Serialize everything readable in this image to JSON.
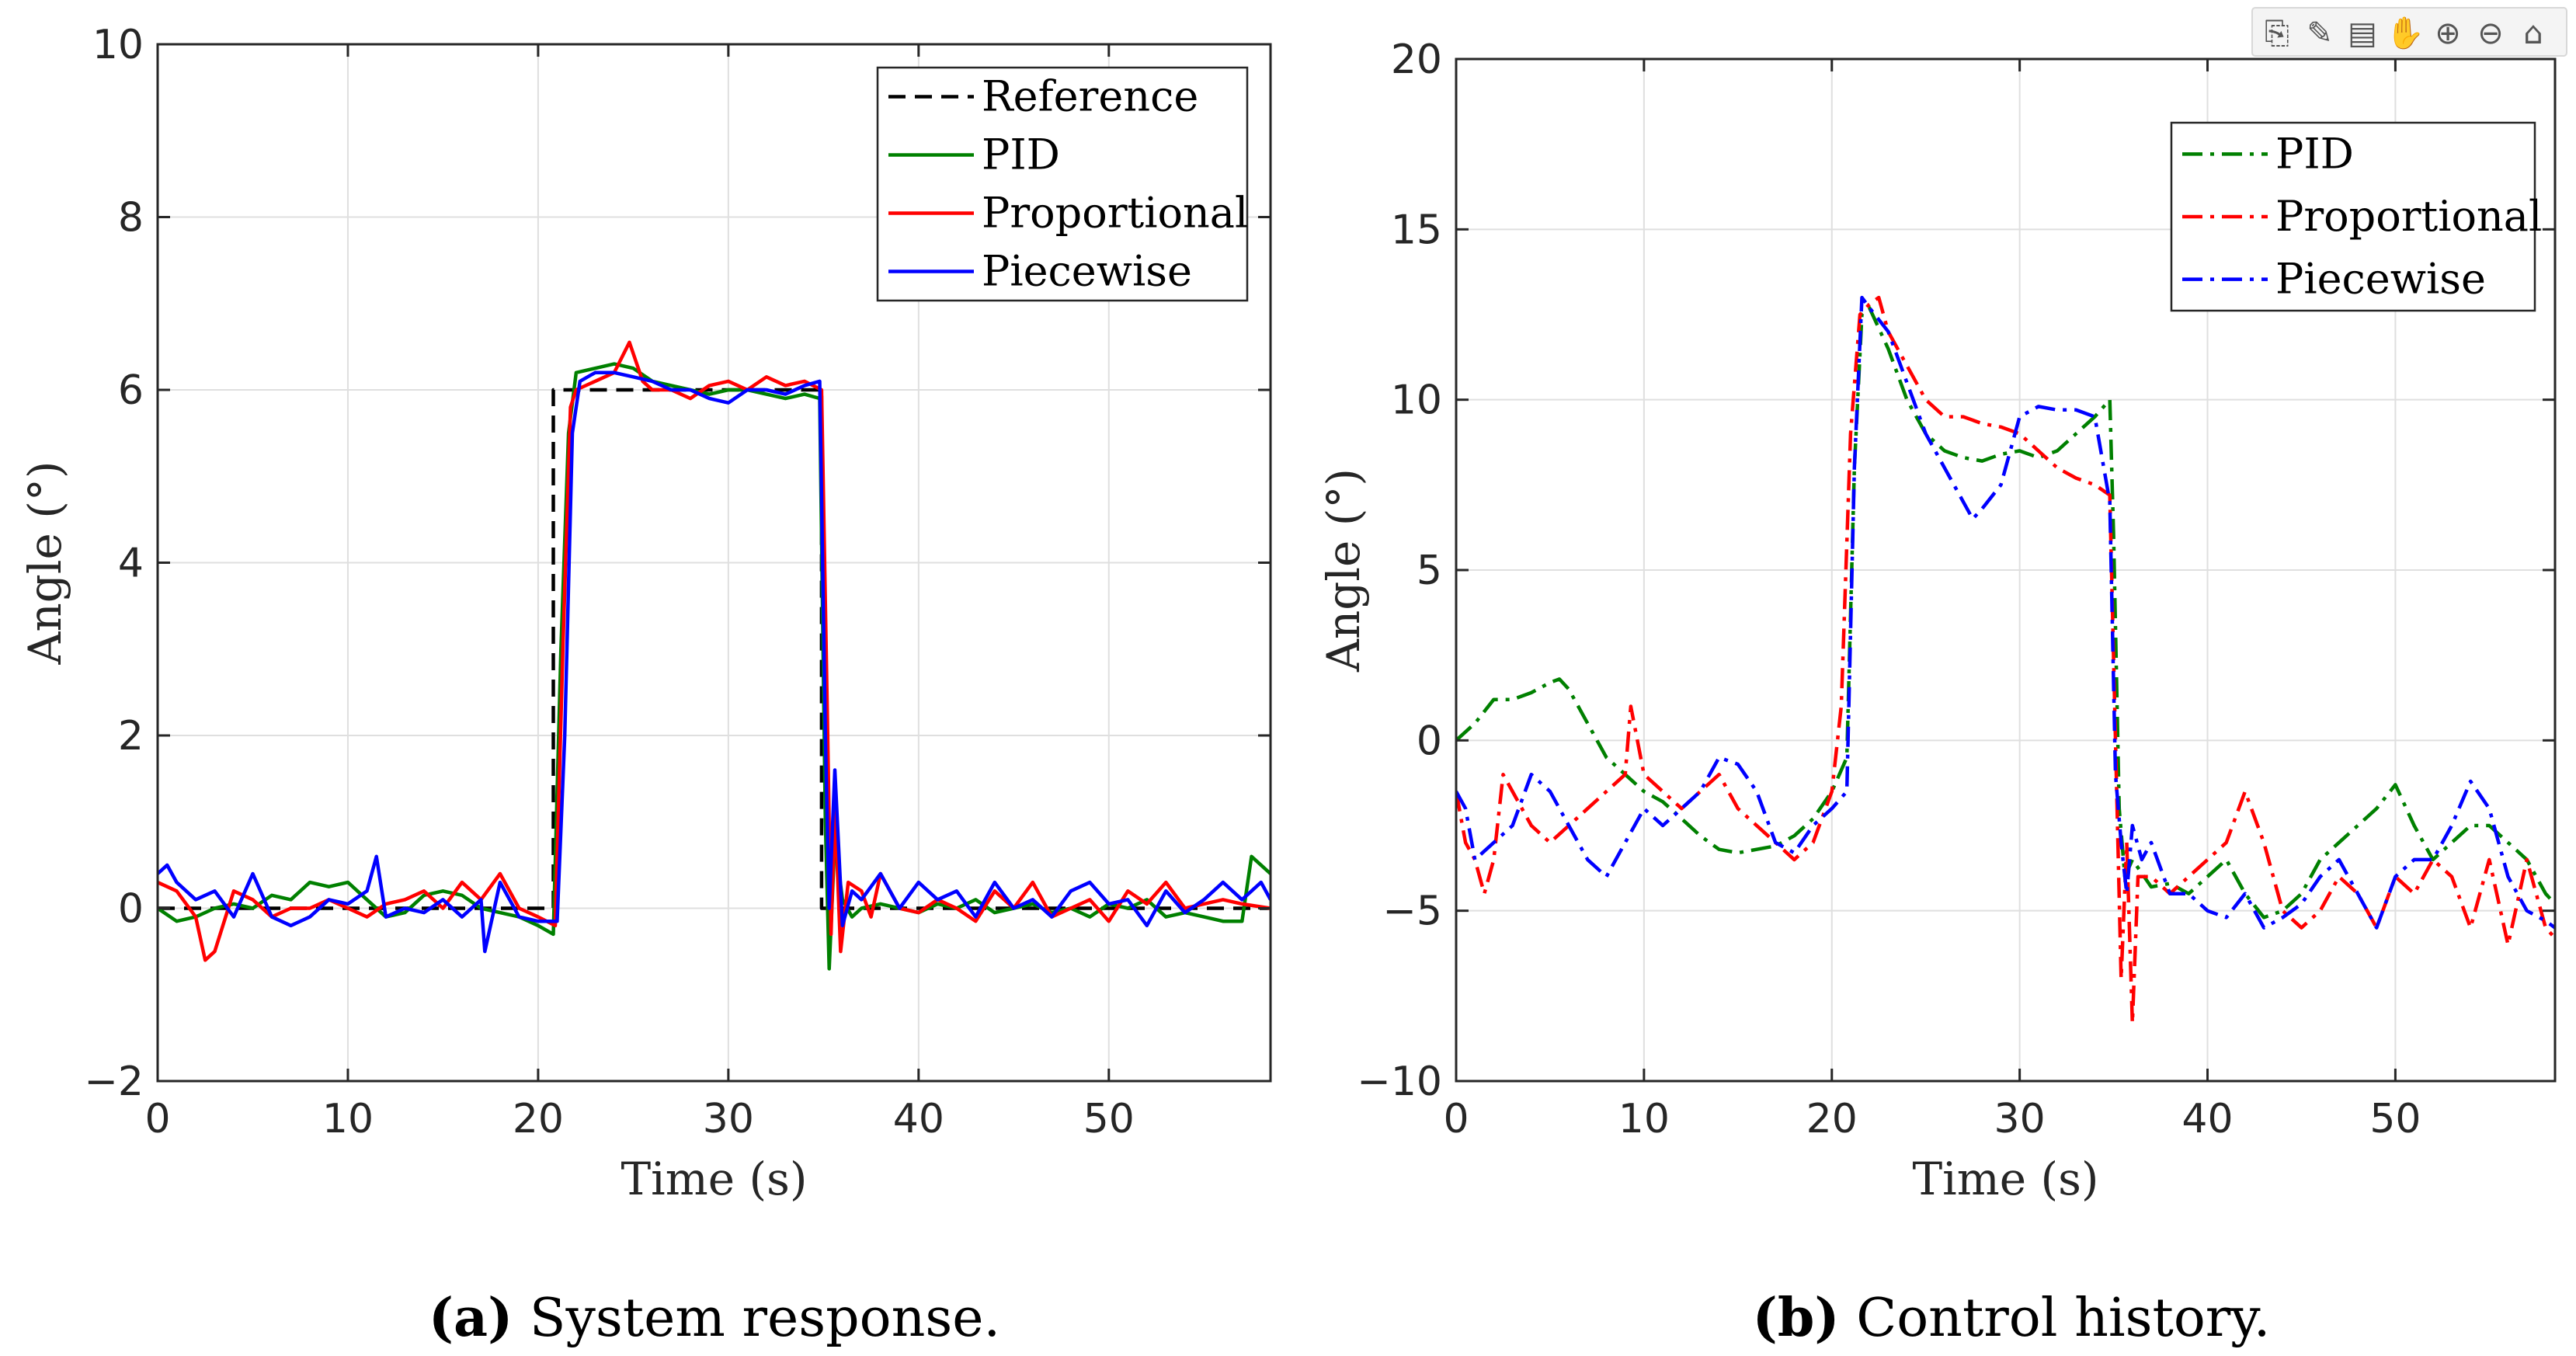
{
  "toolbar": {
    "icons": [
      "export-icon",
      "brush-icon",
      "datatip-icon",
      "pan-icon",
      "zoom-in-icon",
      "zoom-out-icon",
      "home-icon"
    ]
  },
  "chart_data": [
    {
      "type": "line",
      "caption_label": "(a)",
      "caption_text": " System response.",
      "xlabel": "Time (s)",
      "ylabel": "Angle (°)",
      "xlim": [
        0,
        58.5
      ],
      "ylim": [
        -2,
        10
      ],
      "xticks": [
        0,
        10,
        20,
        30,
        40,
        50
      ],
      "yticks": [
        -2,
        0,
        2,
        4,
        6,
        8,
        10
      ],
      "xtick_labels": [
        "0",
        "10",
        "20",
        "30",
        "40",
        "50"
      ],
      "ytick_labels": [
        "−2",
        "0",
        "2",
        "4",
        "6",
        "8",
        "10"
      ],
      "grid": true,
      "legend_position": "top-right",
      "series": [
        {
          "name": "Reference",
          "color": "#000000",
          "style": "dashed",
          "x": [
            0,
            20.8,
            20.8,
            34.9,
            34.9,
            58.5
          ],
          "y": [
            0,
            0,
            6,
            6,
            0,
            0
          ]
        },
        {
          "name": "PID",
          "color": "#008000",
          "style": "solid",
          "x": [
            0,
            1,
            2,
            3,
            4,
            5,
            6,
            7,
            8,
            9,
            10,
            11,
            12,
            13,
            14,
            15,
            16,
            17,
            18,
            19,
            20,
            20.8,
            21.2,
            21.6,
            22,
            23,
            24,
            25,
            26,
            27,
            28,
            29,
            30,
            31,
            32,
            33,
            34,
            34.8,
            35.1,
            35.3,
            35.6,
            36,
            36.5,
            37,
            38,
            39,
            40,
            41,
            42,
            43,
            44,
            45,
            46,
            47,
            48,
            49,
            50,
            51,
            52,
            53,
            54,
            55,
            56,
            57,
            57.5,
            58,
            58.5
          ],
          "y": [
            0,
            -0.15,
            -0.1,
            0,
            0.05,
            0,
            0.15,
            0.1,
            0.3,
            0.25,
            0.3,
            0.1,
            -0.1,
            -0.05,
            0.15,
            0.2,
            0.15,
            0,
            -0.05,
            -0.1,
            -0.2,
            -0.3,
            3,
            5.5,
            6.2,
            6.25,
            6.3,
            6.25,
            6.1,
            6.05,
            6,
            5.95,
            6,
            6,
            5.95,
            5.9,
            5.95,
            5.9,
            1,
            -0.7,
            0.8,
            0.1,
            -0.1,
            0,
            0.05,
            0,
            -0.05,
            0.05,
            0,
            0.1,
            -0.05,
            0,
            0.05,
            -0.05,
            0,
            -0.1,
            0.05,
            0,
            0.1,
            -0.1,
            -0.05,
            -0.1,
            -0.15,
            -0.15,
            0.6,
            0.5,
            0.4
          ]
        },
        {
          "name": "Proportional",
          "color": "#ff0000",
          "style": "solid",
          "x": [
            0,
            1,
            2,
            2.5,
            3,
            4,
            5,
            6,
            7,
            8,
            9,
            10,
            11,
            12,
            13,
            14,
            15,
            16,
            17,
            18,
            19,
            20,
            20.9,
            21.3,
            21.7,
            22,
            23,
            24,
            24.8,
            25.5,
            26,
            27,
            28,
            29,
            30,
            31,
            32,
            33,
            34,
            34.9,
            35.2,
            35.4,
            35.6,
            35.9,
            36.3,
            37,
            37.5,
            38,
            39,
            40,
            41,
            42,
            43,
            44,
            45,
            46,
            47,
            48,
            49,
            50,
            51,
            52,
            53,
            54,
            55,
            56,
            57,
            58.5
          ],
          "y": [
            0.3,
            0.2,
            -0.1,
            -0.6,
            -0.5,
            0.2,
            0.1,
            -0.1,
            0,
            0,
            0.1,
            0,
            -0.1,
            0.05,
            0.1,
            0.2,
            0,
            0.3,
            0.1,
            0.4,
            0,
            -0.1,
            -0.2,
            3,
            5.8,
            6,
            6.1,
            6.2,
            6.55,
            6.1,
            6,
            6,
            5.9,
            6.05,
            6.1,
            6,
            6.15,
            6.05,
            6.1,
            6,
            2.3,
            -0.3,
            1.2,
            -0.5,
            0.3,
            0.2,
            -0.1,
            0.4,
            0,
            -0.05,
            0.1,
            0,
            -0.15,
            0.2,
            0,
            0.3,
            -0.1,
            0,
            0.1,
            -0.15,
            0.2,
            0.05,
            0.3,
            0,
            0.05,
            0.1,
            0.05,
            0
          ]
        },
        {
          "name": "Piecewise",
          "color": "#0000ff",
          "style": "solid",
          "x": [
            0,
            0.5,
            1,
            2,
            3,
            4,
            5,
            6,
            7,
            8,
            9,
            10,
            11,
            11.5,
            12,
            13,
            14,
            15,
            16,
            17,
            17.2,
            18,
            19,
            20,
            21,
            21.4,
            21.8,
            22.2,
            23,
            24,
            25,
            26,
            27,
            28,
            29,
            30,
            31,
            32,
            33,
            34,
            34.8,
            35.1,
            35.3,
            35.6,
            36,
            36.5,
            37,
            38,
            39,
            40,
            41,
            42,
            43,
            44,
            45,
            46,
            47,
            48,
            49,
            50,
            51,
            52,
            53,
            54,
            55,
            56,
            57,
            58,
            58.5
          ],
          "y": [
            0.4,
            0.5,
            0.3,
            0.1,
            0.2,
            -0.1,
            0.4,
            -0.1,
            -0.2,
            -0.1,
            0.1,
            0.05,
            0.2,
            0.6,
            -0.1,
            0,
            -0.05,
            0.1,
            -0.1,
            0.1,
            -0.5,
            0.3,
            -0.1,
            -0.15,
            -0.15,
            2,
            5.5,
            6.1,
            6.2,
            6.2,
            6.15,
            6.1,
            6,
            6,
            5.9,
            5.85,
            6,
            6,
            5.95,
            6.05,
            6.1,
            2,
            0,
            1.6,
            -0.2,
            0.2,
            0.1,
            0.4,
            0,
            0.3,
            0.1,
            0.2,
            -0.1,
            0.3,
            0,
            0.1,
            -0.1,
            0.2,
            0.3,
            0.05,
            0.1,
            -0.2,
            0.2,
            -0.05,
            0.1,
            0.3,
            0.1,
            0.3,
            0.1
          ]
        }
      ]
    },
    {
      "type": "line",
      "caption_label": "(b)",
      "caption_text": " Control history.",
      "xlabel": "Time (s)",
      "ylabel": "Angle (°)",
      "xlim": [
        0,
        58.5
      ],
      "ylim": [
        -10,
        20
      ],
      "xticks": [
        0,
        10,
        20,
        30,
        40,
        50
      ],
      "yticks": [
        -10,
        -5,
        0,
        5,
        10,
        15,
        20
      ],
      "xtick_labels": [
        "0",
        "10",
        "20",
        "30",
        "40",
        "50"
      ],
      "ytick_labels": [
        "−10",
        "−5",
        "0",
        "5",
        "10",
        "15",
        "20"
      ],
      "grid": true,
      "legend_position": "top-right",
      "series": [
        {
          "name": "PID",
          "color": "#008000",
          "style": "dashdot",
          "x": [
            0,
            1,
            2,
            3,
            4,
            5,
            5.5,
            6,
            7,
            8,
            9,
            10,
            11,
            12,
            13,
            14,
            15,
            16,
            17,
            18,
            19,
            20,
            20.8,
            21.2,
            21.6,
            22,
            23,
            24,
            25,
            26,
            27,
            28,
            29,
            30,
            31,
            32,
            33,
            34,
            34.8,
            35,
            35.3,
            35.6,
            36,
            37,
            38,
            39,
            40,
            41,
            42,
            43,
            44,
            45,
            46,
            47,
            48,
            49,
            50,
            51,
            52,
            53,
            54,
            55,
            56,
            57,
            58,
            58.5
          ],
          "y": [
            0,
            0.5,
            1.2,
            1.2,
            1.4,
            1.7,
            1.8,
            1.5,
            0.5,
            -0.5,
            -1,
            -1.5,
            -1.8,
            -2.3,
            -2.8,
            -3.2,
            -3.3,
            -3.2,
            -3.1,
            -2.8,
            -2.3,
            -1.5,
            -0.5,
            8,
            12.5,
            12.7,
            11.5,
            10,
            9,
            8.5,
            8.3,
            8.2,
            8.4,
            8.5,
            8.3,
            8.5,
            9,
            9.5,
            10,
            6,
            -2,
            -4,
            -3.5,
            -4.3,
            -4.2,
            -4.5,
            -4,
            -3.5,
            -4.5,
            -5.2,
            -5,
            -4.5,
            -3.5,
            -3,
            -2.5,
            -2,
            -1.3,
            -2.5,
            -3.5,
            -3,
            -2.5,
            -2.5,
            -3,
            -3.5,
            -4.5,
            -4.8
          ]
        },
        {
          "name": "Proportional",
          "color": "#ff0000",
          "style": "dashdot",
          "x": [
            0,
            0.5,
            1,
            1.5,
            2,
            2.5,
            3,
            4,
            5,
            6,
            7,
            8,
            9,
            9.3,
            10,
            11,
            12,
            13,
            14,
            15,
            16,
            17,
            18,
            19,
            20,
            20.5,
            21,
            21.5,
            22,
            22.5,
            23,
            24,
            25,
            26,
            27,
            28,
            29,
            30,
            31,
            32,
            33,
            34,
            34.8,
            35.1,
            35.4,
            35.7,
            36,
            36.3,
            37,
            38,
            39,
            40,
            41,
            42,
            43,
            44,
            45,
            46,
            47,
            48,
            49,
            50,
            51,
            52,
            53,
            54,
            55,
            56,
            57,
            58,
            58.5
          ],
          "y": [
            -1.5,
            -3,
            -3.5,
            -4.5,
            -3.5,
            -1,
            -1.5,
            -2.5,
            -3,
            -2.5,
            -2,
            -1.5,
            -1,
            1,
            -1,
            -1.5,
            -2,
            -1.5,
            -1,
            -2,
            -2.5,
            -3,
            -3.5,
            -3,
            -1.5,
            1,
            9,
            12.5,
            12.8,
            13,
            12,
            11,
            10,
            9.5,
            9.5,
            9.3,
            9.2,
            9,
            8.5,
            8,
            7.7,
            7.5,
            7.2,
            0,
            -7,
            -3,
            -8.3,
            -4,
            -4,
            -4.5,
            -4,
            -3.5,
            -3,
            -1.5,
            -3,
            -5,
            -5.5,
            -5,
            -4,
            -4.5,
            -5.5,
            -4,
            -4.5,
            -3.5,
            -4,
            -5.5,
            -3.5,
            -6,
            -3.5,
            -5.5,
            -5.8
          ]
        },
        {
          "name": "Piecewise",
          "color": "#0000ff",
          "style": "dashdot",
          "x": [
            0,
            0.5,
            1,
            2,
            3,
            4,
            5,
            6,
            7,
            8,
            9,
            10,
            11,
            12,
            13,
            14,
            15,
            16,
            17,
            18,
            19,
            20,
            20.8,
            21.2,
            21.6,
            22,
            23,
            24,
            25,
            26,
            27,
            27.5,
            28,
            29,
            30,
            31,
            32,
            33,
            34,
            34.8,
            35.1,
            35.4,
            35.7,
            36,
            36.5,
            37,
            38,
            39,
            40,
            41,
            42,
            43,
            44,
            45,
            46,
            47,
            48,
            49,
            50,
            51,
            52,
            53,
            54,
            55,
            56,
            57,
            58,
            58.5
          ],
          "y": [
            -1.5,
            -2,
            -3.5,
            -3,
            -2.5,
            -1,
            -1.5,
            -2.5,
            -3.5,
            -4,
            -3,
            -2,
            -2.5,
            -2,
            -1.5,
            -0.5,
            -0.7,
            -1.5,
            -3,
            -3.3,
            -2.5,
            -2,
            -1.5,
            8,
            13,
            12.7,
            12,
            10.5,
            9,
            8,
            7,
            6.5,
            6.8,
            7.5,
            9.5,
            9.8,
            9.7,
            9.7,
            9.5,
            7,
            -1,
            -3,
            -4.5,
            -2.5,
            -3.5,
            -3,
            -4.5,
            -4.5,
            -5,
            -5.2,
            -4.5,
            -5.5,
            -5.2,
            -4.8,
            -4,
            -3.5,
            -4.5,
            -5.5,
            -4,
            -3.5,
            -3.5,
            -2.5,
            -1.2,
            -2,
            -4,
            -5,
            -5.3,
            -5.5
          ]
        }
      ]
    }
  ]
}
